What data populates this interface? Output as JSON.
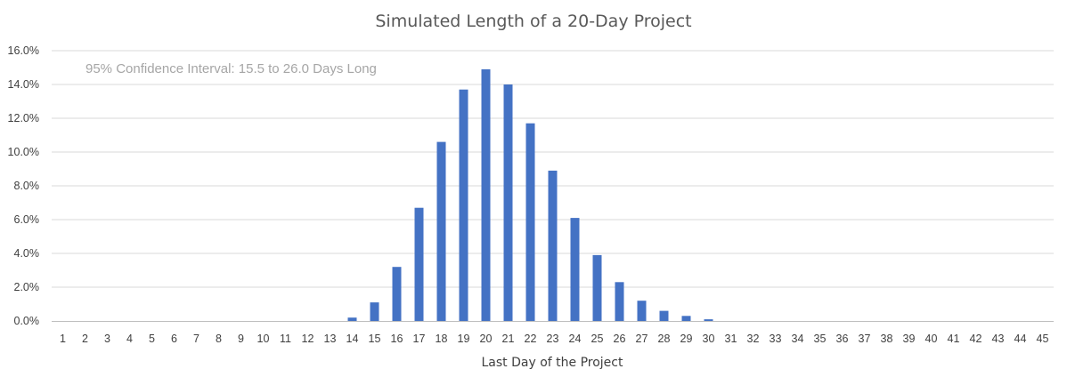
{
  "chart_data": {
    "type": "bar",
    "title": "Simulated Length of a 20-Day Project",
    "xlabel": "Last Day of the Project",
    "ylabel": "",
    "annotation": "95% Confidence Interval: 15.5 to 26.0 Days Long",
    "categories": [
      "1",
      "2",
      "3",
      "4",
      "5",
      "6",
      "7",
      "8",
      "9",
      "10",
      "11",
      "12",
      "13",
      "14",
      "15",
      "16",
      "17",
      "18",
      "19",
      "20",
      "21",
      "22",
      "23",
      "24",
      "25",
      "26",
      "27",
      "28",
      "29",
      "30",
      "31",
      "32",
      "33",
      "34",
      "35",
      "36",
      "37",
      "38",
      "39",
      "40",
      "41",
      "42",
      "43",
      "44",
      "45"
    ],
    "values": [
      0,
      0,
      0,
      0,
      0,
      0,
      0,
      0,
      0,
      0,
      0,
      0,
      0,
      0.2,
      1.1,
      3.2,
      6.7,
      10.6,
      13.7,
      14.9,
      14.0,
      11.7,
      8.9,
      6.1,
      3.9,
      2.3,
      1.2,
      0.6,
      0.3,
      0.1,
      0,
      0,
      0,
      0,
      0,
      0,
      0,
      0,
      0,
      0,
      0,
      0,
      0,
      0,
      0
    ],
    "ylim": [
      0,
      16
    ],
    "yticks": [
      "0.0%",
      "2.0%",
      "4.0%",
      "6.0%",
      "8.0%",
      "10.0%",
      "12.0%",
      "14.0%",
      "16.0%"
    ],
    "ytick_values": [
      0,
      2,
      4,
      6,
      8,
      10,
      12,
      14,
      16
    ],
    "grid": true,
    "legend": "none",
    "bar_color": "#4472c4"
  }
}
